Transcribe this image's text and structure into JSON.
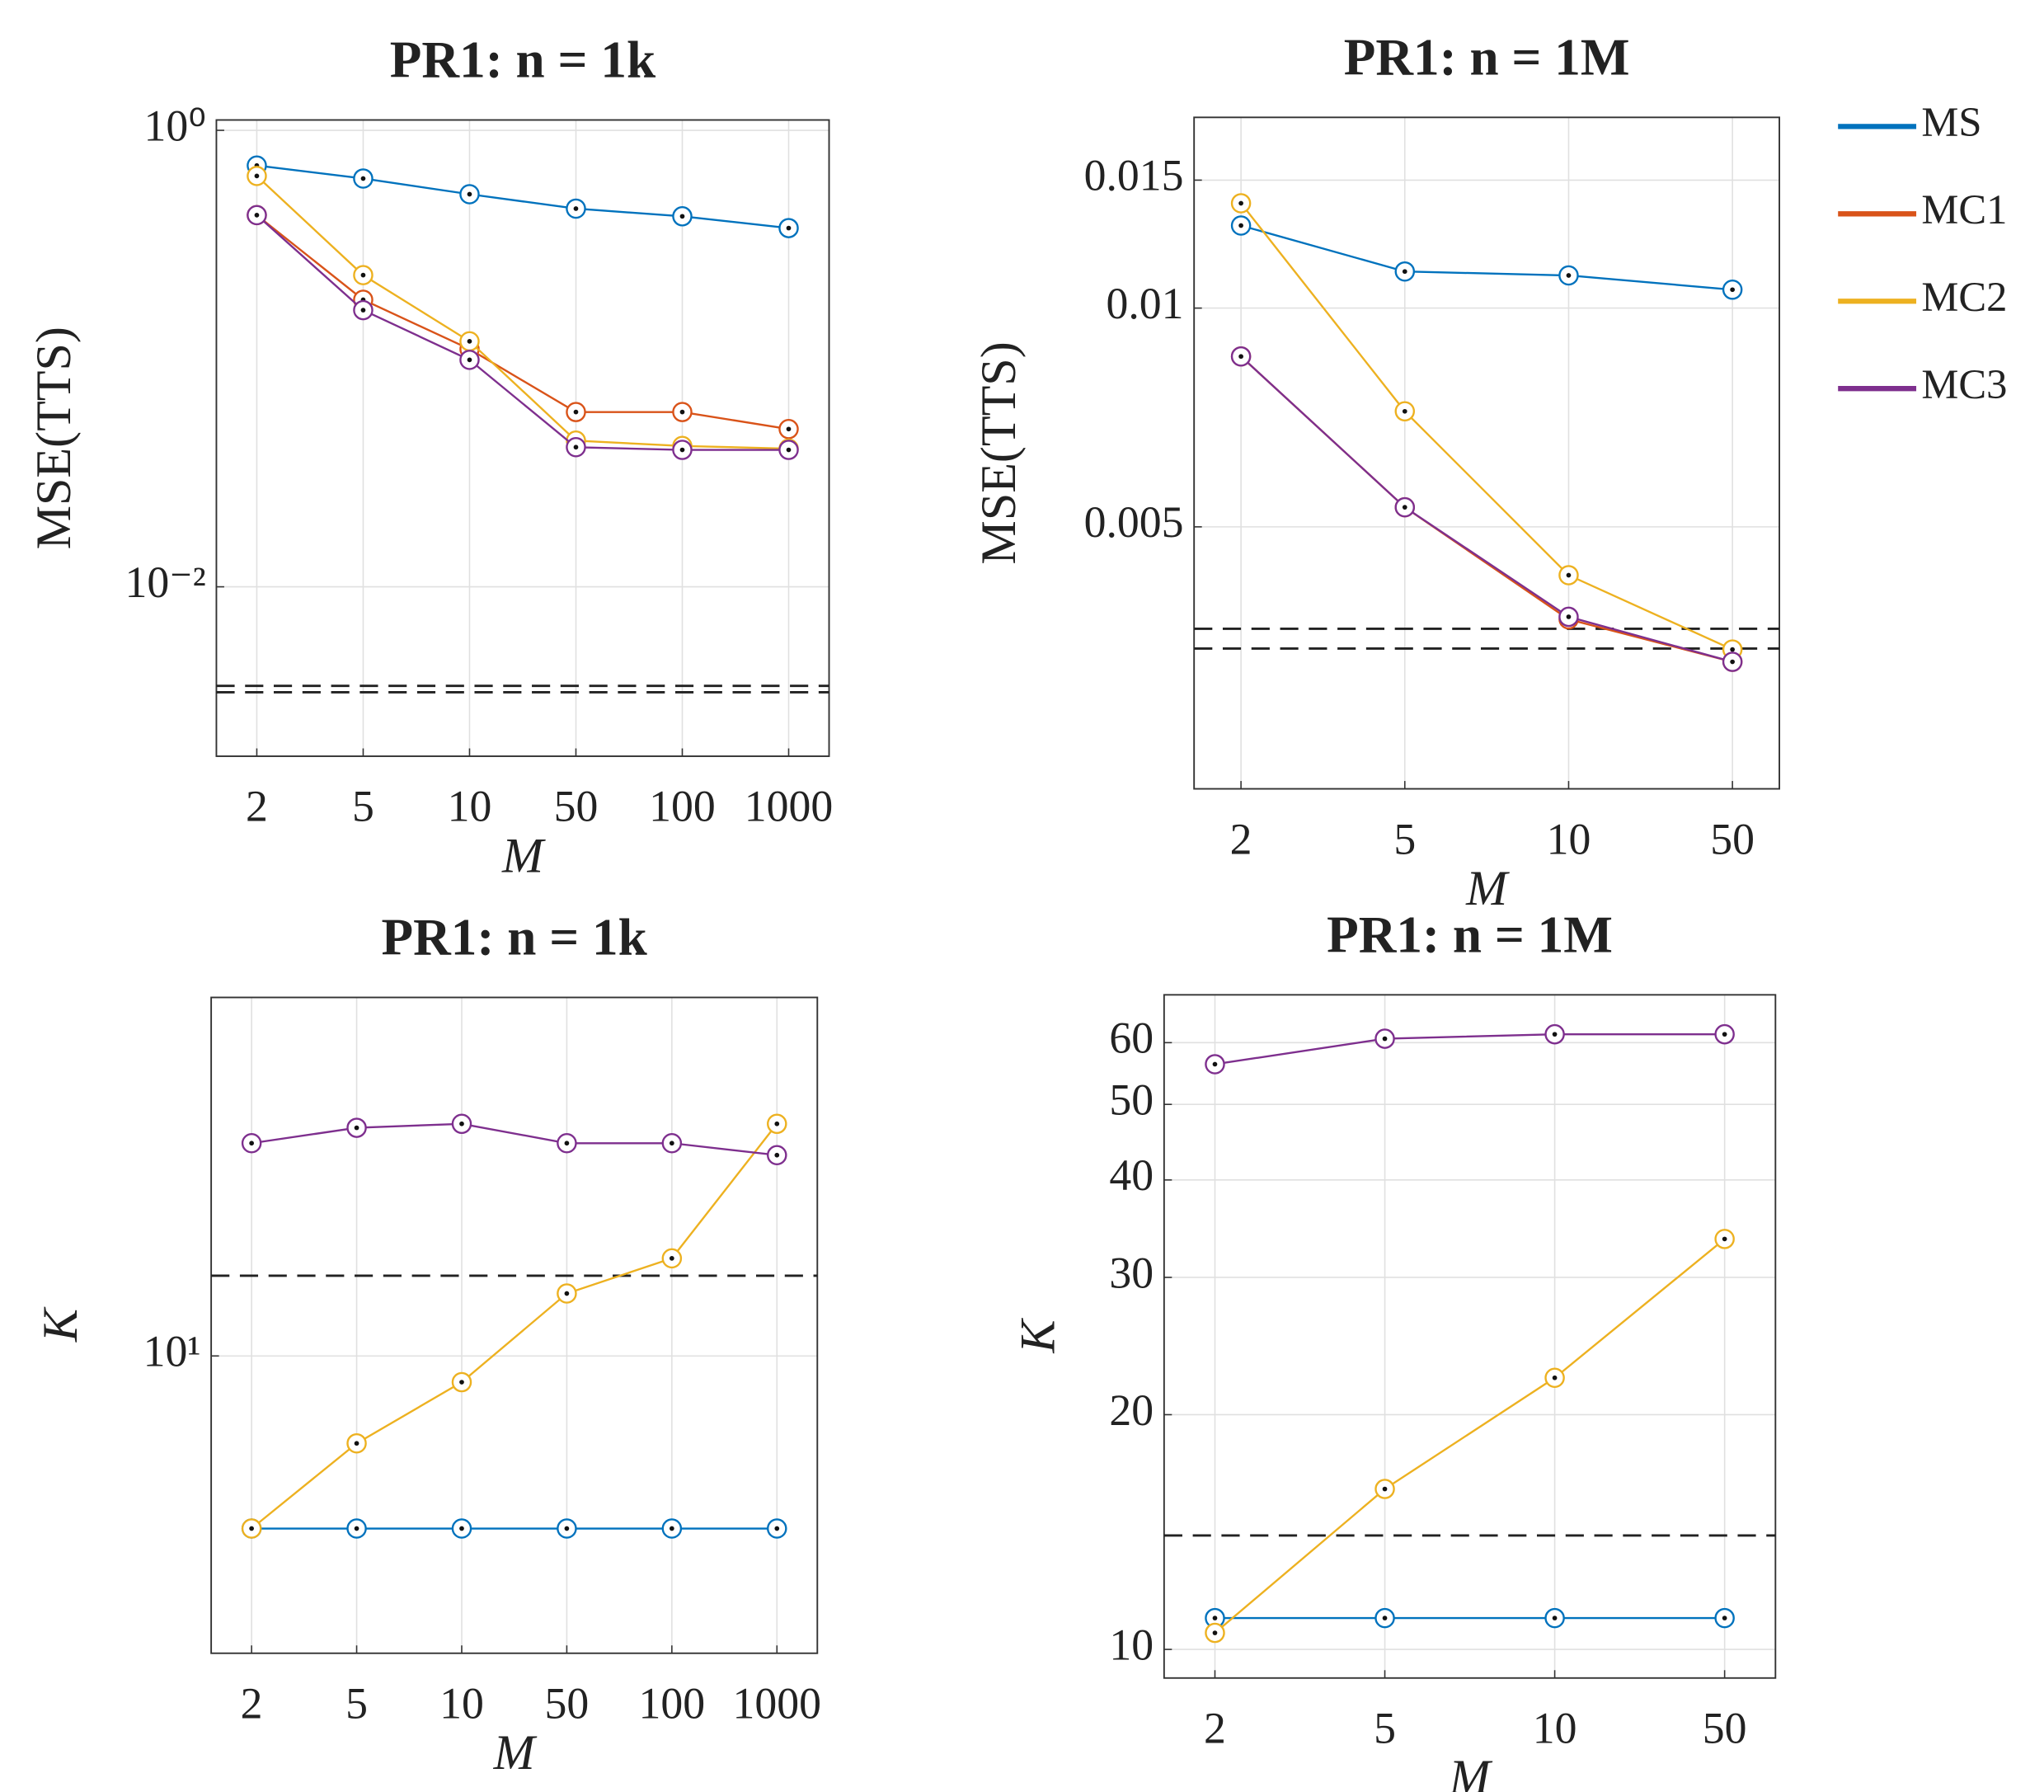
{
  "chart_data": [
    {
      "type": "line",
      "title": "PR1: n = 1k",
      "xlabel": "M",
      "ylabel": "MSE(TTS)",
      "log_y": true,
      "grid": true,
      "categories": [
        "2",
        "5",
        "10",
        "50",
        "100",
        "1000"
      ],
      "ylim": [
        0.00181,
        1.11
      ],
      "yticks": [
        {
          "value": 0.01,
          "label": "10⁻²"
        },
        {
          "value": 1,
          "label": "10⁰"
        }
      ],
      "reference_lines": [
        0.00368,
        0.00345
      ],
      "series": [
        {
          "color": "#0072bd",
          "values": [
            0.701,
            0.615,
            0.525,
            0.454,
            0.42,
            0.373
          ]
        },
        {
          "color": "#d95319",
          "values": [
            0.425,
            0.181,
            0.11,
            0.0583,
            0.0583,
            0.0491
          ]
        },
        {
          "color": "#edb120",
          "values": [
            0.631,
            0.232,
            0.119,
            0.0437,
            0.0414,
            0.0403
          ]
        },
        {
          "color": "#7e2f8e",
          "values": [
            0.425,
            0.163,
            0.0987,
            0.0409,
            0.0398,
            0.0398
          ]
        }
      ]
    },
    {
      "type": "line",
      "title": "PR1: n = 1M",
      "xlabel": "M",
      "ylabel": "MSE(TTS)",
      "log_y": true,
      "grid": true,
      "legend": "right",
      "categories": [
        "2",
        "5",
        "10",
        "50"
      ],
      "ylim": [
        0.00218,
        0.0183
      ],
      "yticks": [
        0.005,
        0.01,
        0.015
      ],
      "reference_lines": [
        0.00362,
        0.0034
      ],
      "series": [
        {
          "name": "MS",
          "color": "#0072bd",
          "values": [
            0.01299,
            0.01123,
            0.01109,
            0.0106
          ]
        },
        {
          "name": "MC1",
          "color": "#d95319",
          "values": [
            0.00858,
            0.00532,
            0.00373,
            0.00326
          ]
        },
        {
          "name": "MC2",
          "color": "#edb120",
          "values": [
            0.01394,
            0.00721,
            0.00429,
            0.00339
          ]
        },
        {
          "name": "MC3",
          "color": "#7e2f8e",
          "values": [
            0.00858,
            0.00532,
            0.00376,
            0.00326
          ]
        }
      ]
    },
    {
      "type": "line",
      "title": "PR1: n = 1k",
      "xlabel": "M",
      "ylabel": "K",
      "log_y": true,
      "grid": true,
      "categories": [
        "2",
        "5",
        "10",
        "50",
        "100",
        "1000"
      ],
      "ylim": [
        3.03,
        42.2
      ],
      "yticks": [
        {
          "value": 10,
          "label": "10¹"
        }
      ],
      "reference_lines": [
        13.8
      ],
      "series": [
        {
          "color": "#0072bd",
          "values": [
            5,
            5,
            5,
            5,
            5,
            5
          ]
        },
        {
          "color": "#edb120",
          "values": [
            5,
            7.04,
            9.0,
            12.85,
            14.8,
            25.4
          ]
        },
        {
          "color": "#7e2f8e",
          "values": [
            23.5,
            25.0,
            25.4,
            23.5,
            23.5,
            22.4
          ]
        }
      ]
    },
    {
      "type": "line",
      "title": "PR1: n = 1M",
      "xlabel": "M",
      "ylabel": "K",
      "log_y": true,
      "grid": true,
      "categories": [
        "2",
        "5",
        "10",
        "50"
      ],
      "ylim": [
        9.19,
        69.1
      ],
      "yticks": [
        10,
        20,
        30,
        40,
        50,
        60
      ],
      "reference_lines": [
        14.0
      ],
      "series": [
        {
          "color": "#0072bd",
          "values": [
            10.97,
            10.97,
            10.97,
            10.97
          ]
        },
        {
          "color": "#edb120",
          "values": [
            10.5,
            16.06,
            22.3,
            33.6
          ]
        },
        {
          "color": "#7e2f8e",
          "values": [
            56.3,
            60.7,
            61.5,
            61.5
          ]
        }
      ]
    }
  ]
}
